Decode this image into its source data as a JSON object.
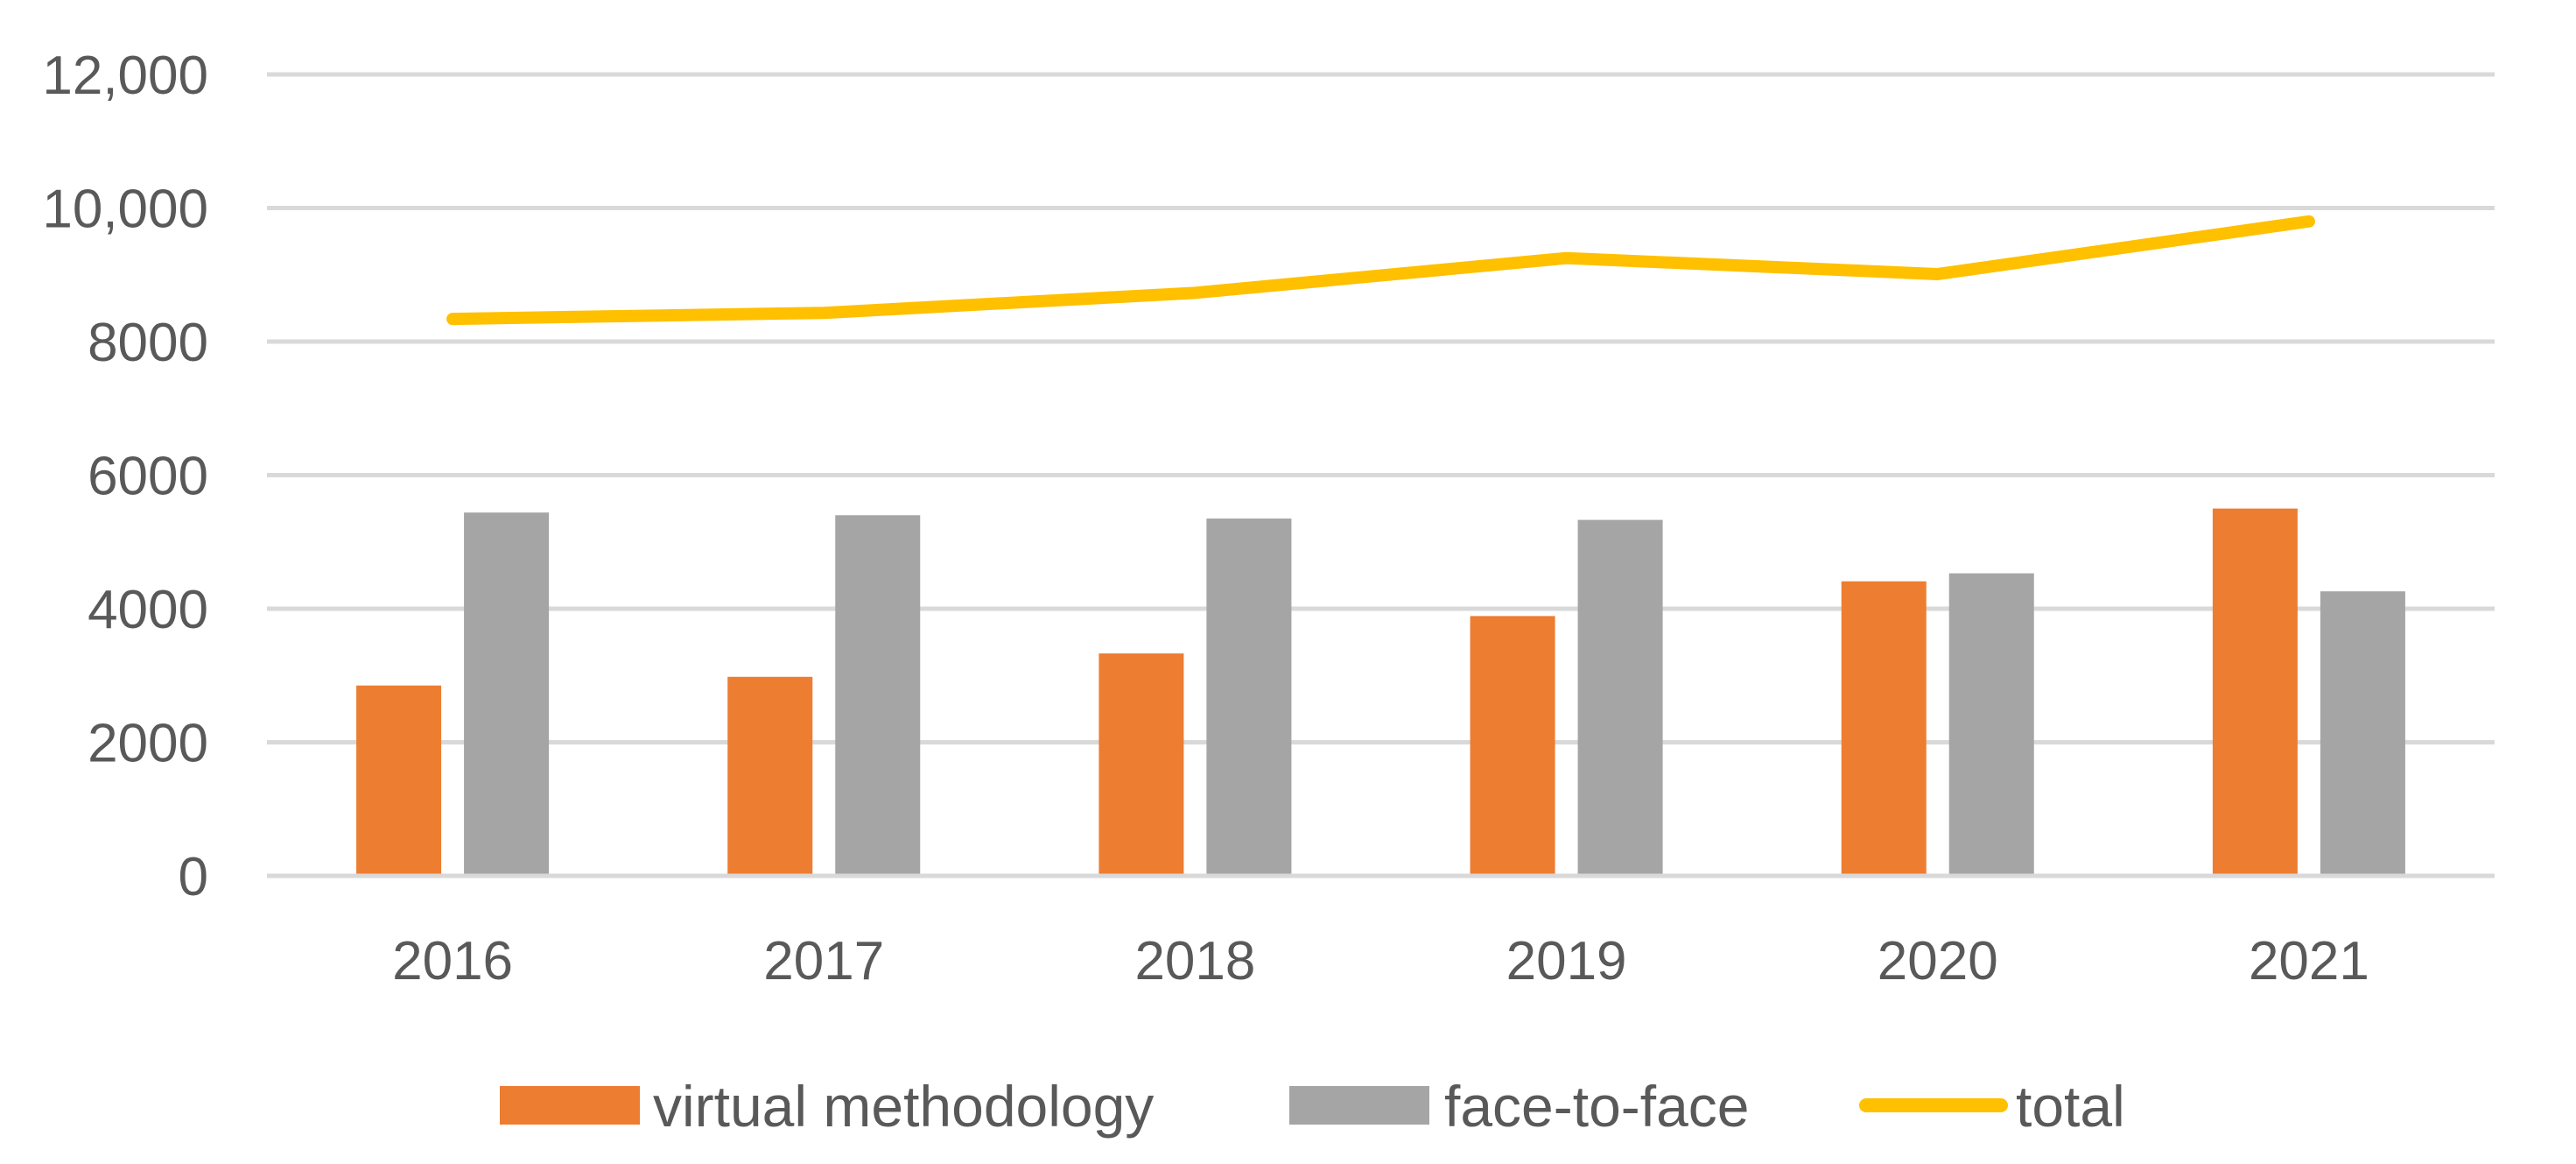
{
  "chart_data": {
    "type": "bar",
    "title": "",
    "xlabel": "",
    "ylabel": "",
    "categories": [
      "2016",
      "2017",
      "2018",
      "2019",
      "2020",
      "2021"
    ],
    "ylim": [
      0,
      12000
    ],
    "yticks": [
      {
        "value": 0,
        "label": "0"
      },
      {
        "value": 2000,
        "label": "2000"
      },
      {
        "value": 4000,
        "label": "4000"
      },
      {
        "value": 6000,
        "label": "6000"
      },
      {
        "value": 8000,
        "label": "8000"
      },
      {
        "value": 10000,
        "label": "10,000"
      },
      {
        "value": 12000,
        "label": "12,000"
      }
    ],
    "grid": true,
    "legend_position": "bottom",
    "series": [
      {
        "name": "virtual methodology",
        "type": "bar",
        "color": "#ED7D31",
        "values": [
          2850,
          2980,
          3330,
          3890,
          4410,
          5500
        ]
      },
      {
        "name": "face-to-face",
        "type": "bar",
        "color": "#A5A5A5",
        "values": [
          5440,
          5400,
          5350,
          5330,
          4530,
          4260
        ]
      },
      {
        "name": "total",
        "type": "line",
        "color": "#FFC000",
        "values": [
          8340,
          8430,
          8730,
          9250,
          9010,
          9800
        ]
      }
    ]
  }
}
